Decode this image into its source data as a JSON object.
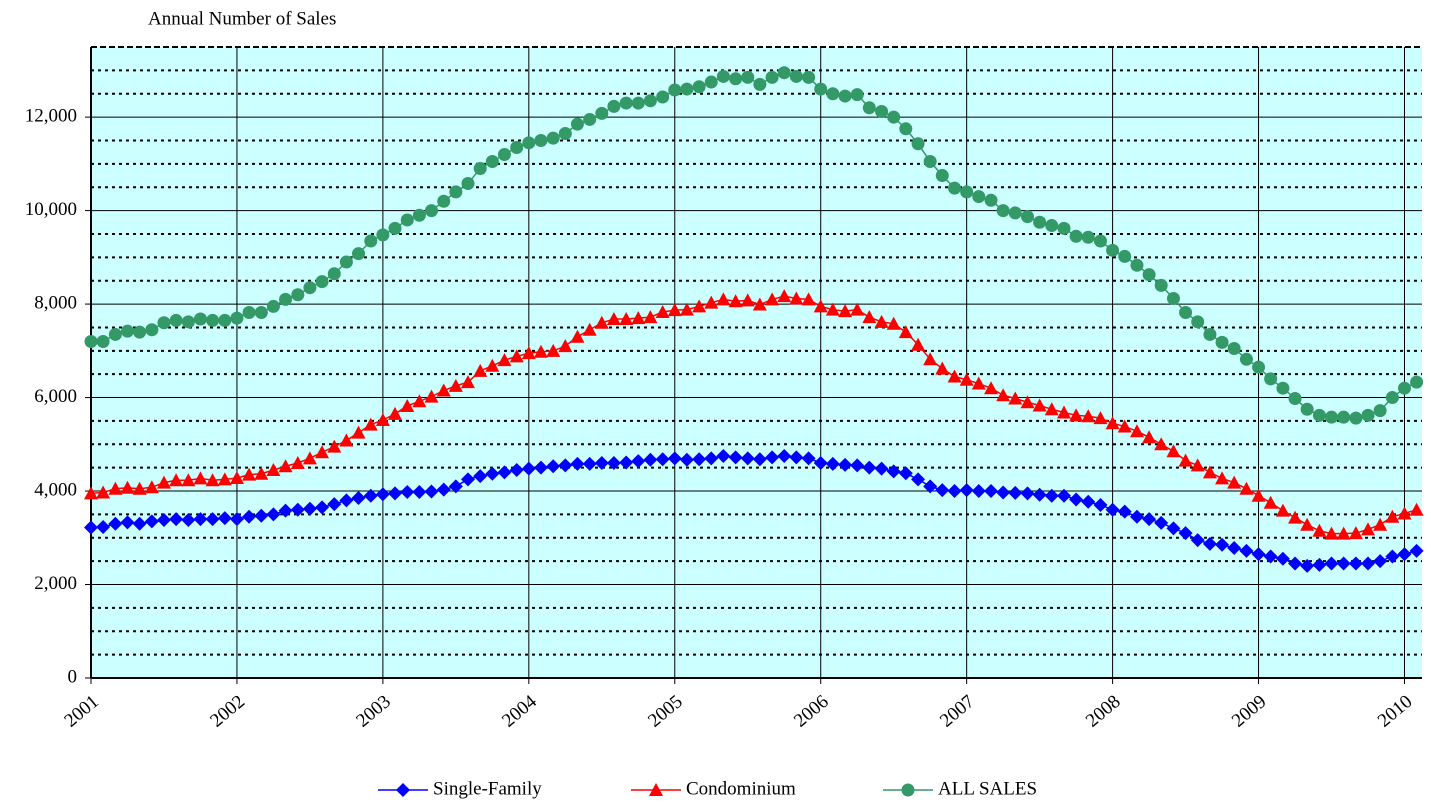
{
  "chart_data": {
    "type": "line",
    "title": "Annual Number of Sales",
    "x": [
      2001,
      2001.083,
      2001.167,
      2001.25,
      2001.333,
      2001.417,
      2001.5,
      2001.583,
      2001.667,
      2001.75,
      2001.833,
      2001.917,
      2002,
      2002.083,
      2002.167,
      2002.25,
      2002.333,
      2002.417,
      2002.5,
      2002.583,
      2002.667,
      2002.75,
      2002.833,
      2002.917,
      2003,
      2003.083,
      2003.167,
      2003.25,
      2003.333,
      2003.417,
      2003.5,
      2003.583,
      2003.667,
      2003.75,
      2003.833,
      2003.917,
      2004,
      2004.083,
      2004.167,
      2004.25,
      2004.333,
      2004.417,
      2004.5,
      2004.583,
      2004.667,
      2004.75,
      2004.833,
      2004.917,
      2005,
      2005.083,
      2005.167,
      2005.25,
      2005.333,
      2005.417,
      2005.5,
      2005.583,
      2005.667,
      2005.75,
      2005.833,
      2005.917,
      2006,
      2006.083,
      2006.167,
      2006.25,
      2006.333,
      2006.417,
      2006.5,
      2006.583,
      2006.667,
      2006.75,
      2006.833,
      2006.917,
      2007,
      2007.083,
      2007.167,
      2007.25,
      2007.333,
      2007.417,
      2007.5,
      2007.583,
      2007.667,
      2007.75,
      2007.833,
      2007.917,
      2008,
      2008.083,
      2008.167,
      2008.25,
      2008.333,
      2008.417,
      2008.5,
      2008.583,
      2008.667,
      2008.75,
      2008.833,
      2008.917,
      2009,
      2009.083,
      2009.167,
      2009.25,
      2009.333,
      2009.417,
      2009.5,
      2009.583,
      2009.667,
      2009.75,
      2009.833,
      2009.917,
      2010,
      2010.083
    ],
    "series": [
      {
        "name": "Single-Family",
        "color": "#0000ff",
        "marker": "diamond",
        "values": [
          3220,
          3230,
          3300,
          3330,
          3300,
          3350,
          3380,
          3400,
          3380,
          3400,
          3400,
          3420,
          3400,
          3450,
          3470,
          3500,
          3580,
          3600,
          3620,
          3650,
          3720,
          3800,
          3850,
          3900,
          3930,
          3950,
          3980,
          3980,
          3990,
          4030,
          4100,
          4250,
          4320,
          4370,
          4400,
          4450,
          4480,
          4500,
          4530,
          4550,
          4580,
          4580,
          4600,
          4600,
          4610,
          4640,
          4670,
          4680,
          4700,
          4670,
          4680,
          4700,
          4750,
          4720,
          4700,
          4680,
          4720,
          4750,
          4720,
          4700,
          4600,
          4580,
          4560,
          4550,
          4500,
          4480,
          4420,
          4380,
          4250,
          4100,
          4020,
          4000,
          4020,
          4000,
          4000,
          3970,
          3960,
          3950,
          3920,
          3900,
          3900,
          3820,
          3770,
          3700,
          3600,
          3560,
          3450,
          3400,
          3320,
          3200,
          3100,
          2950,
          2870,
          2850,
          2780,
          2720,
          2650,
          2600,
          2550,
          2450,
          2400,
          2420,
          2450,
          2450,
          2450,
          2450,
          2500,
          2600,
          2650,
          2720
        ]
      },
      {
        "name": "Condominium",
        "color": "#ff0000",
        "marker": "triangle",
        "values": [
          3950,
          3970,
          4050,
          4070,
          4050,
          4080,
          4180,
          4230,
          4230,
          4270,
          4230,
          4250,
          4280,
          4350,
          4370,
          4450,
          4530,
          4600,
          4700,
          4830,
          4950,
          5080,
          5250,
          5420,
          5520,
          5650,
          5820,
          5920,
          6020,
          6150,
          6250,
          6330,
          6570,
          6680,
          6800,
          6880,
          6950,
          6980,
          7000,
          7100,
          7300,
          7450,
          7600,
          7680,
          7680,
          7700,
          7720,
          7830,
          7870,
          7880,
          7950,
          8030,
          8100,
          8060,
          8080,
          7990,
          8100,
          8170,
          8120,
          8100,
          7950,
          7880,
          7850,
          7880,
          7720,
          7620,
          7580,
          7400,
          7130,
          6820,
          6620,
          6450,
          6380,
          6300,
          6200,
          6050,
          5980,
          5900,
          5830,
          5750,
          5680,
          5620,
          5600,
          5560,
          5450,
          5380,
          5280,
          5150,
          5000,
          4850,
          4650,
          4550,
          4400,
          4270,
          4180,
          4050,
          3900,
          3750,
          3580,
          3430,
          3280,
          3150,
          3090,
          3090,
          3100,
          3180,
          3280,
          3450,
          3520,
          3600
        ]
      },
      {
        "name": "ALL SALES",
        "color": "#339966",
        "marker": "circle",
        "values": [
          7200,
          7200,
          7350,
          7420,
          7400,
          7450,
          7600,
          7650,
          7620,
          7680,
          7650,
          7650,
          7700,
          7820,
          7820,
          7950,
          8100,
          8200,
          8350,
          8480,
          8650,
          8900,
          9080,
          9350,
          9480,
          9620,
          9800,
          9900,
          10000,
          10200,
          10400,
          10580,
          10900,
          11050,
          11200,
          11350,
          11450,
          11500,
          11550,
          11650,
          11850,
          11950,
          12080,
          12230,
          12300,
          12300,
          12350,
          12430,
          12580,
          12600,
          12650,
          12750,
          12870,
          12820,
          12850,
          12700,
          12850,
          12950,
          12870,
          12850,
          12600,
          12500,
          12450,
          12480,
          12200,
          12120,
          12000,
          11750,
          11430,
          11050,
          10750,
          10480,
          10400,
          10300,
          10220,
          10000,
          9950,
          9870,
          9750,
          9680,
          9620,
          9450,
          9430,
          9350,
          9150,
          9020,
          8830,
          8630,
          8400,
          8120,
          7820,
          7620,
          7350,
          7180,
          7050,
          6820,
          6650,
          6400,
          6200,
          5980,
          5750,
          5620,
          5580,
          5580,
          5560,
          5620,
          5720,
          6000,
          6200,
          6330
        ]
      }
    ],
    "xlim": [
      2001,
      2010.12
    ],
    "xticks": [
      2001,
      2002,
      2003,
      2004,
      2005,
      2006,
      2007,
      2008,
      2009,
      2010
    ],
    "ylim": [
      0,
      13500
    ],
    "yticks": [
      0,
      {
        "value": 2000,
        "label": "2,000"
      },
      {
        "value": 4000,
        "label": "4,000"
      },
      {
        "value": 6000,
        "label": "6,000"
      },
      {
        "value": 8000,
        "label": "8,000"
      },
      {
        "value": 10000,
        "label": "10,000"
      },
      {
        "value": 12000,
        "label": "12,000"
      }
    ],
    "minor_gridlines": [
      500,
      1000,
      1500,
      2500,
      3000,
      3500,
      4500,
      5000,
      5500,
      6500,
      7000,
      7500,
      8500,
      9000,
      9500,
      10500,
      11000,
      11500,
      12500,
      13000
    ],
    "grid": true,
    "background": "#ccffff",
    "legend": "bottom"
  }
}
